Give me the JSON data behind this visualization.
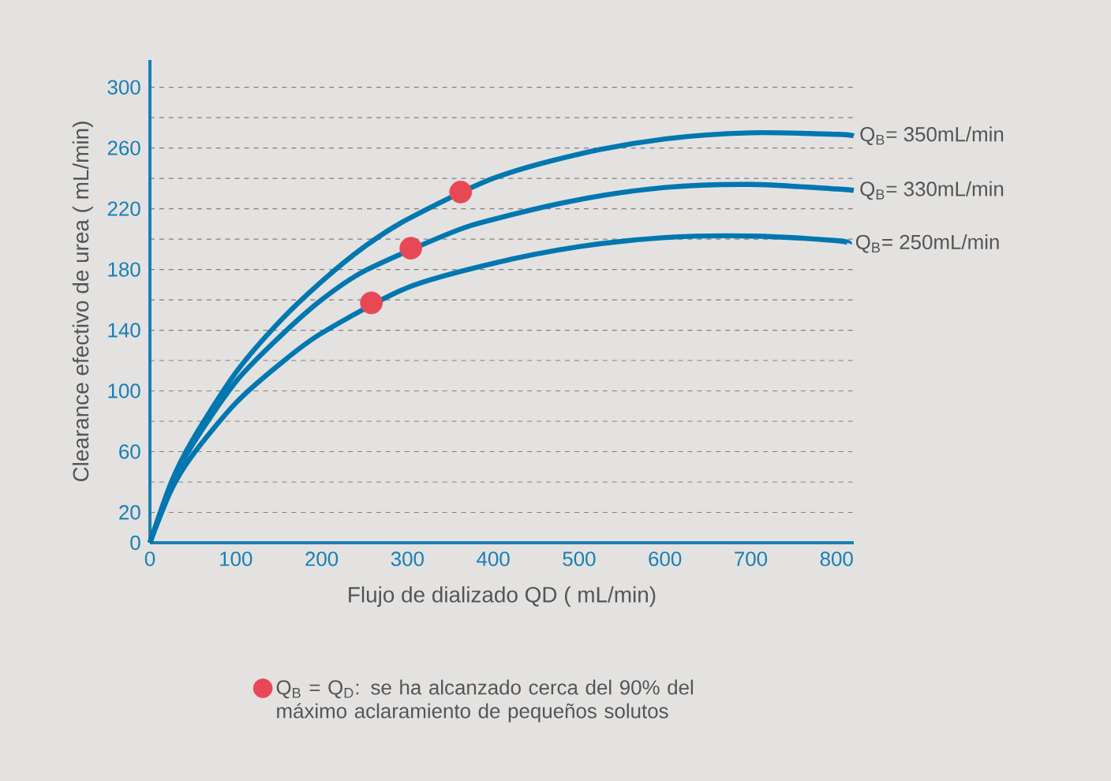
{
  "chart_data": {
    "type": "line",
    "xlabel": "Flujo de dializado QD ( mL/min)",
    "ylabel": "Clearance efectivo de urea ( mL/min)",
    "xlim": [
      0,
      820
    ],
    "ylim": [
      0,
      318
    ],
    "xticks": [
      0,
      100,
      200,
      300,
      400,
      500,
      600,
      700,
      800
    ],
    "yticks": [
      0,
      20,
      {
        "value": 40,
        "label": null
      },
      60,
      {
        "value": 80,
        "label": null
      },
      100,
      {
        "value": 120,
        "label": null
      },
      140,
      {
        "value": 160,
        "label": null
      },
      180,
      {
        "value": 200,
        "label": null
      },
      220,
      {
        "value": 240,
        "label": null
      },
      260,
      {
        "value": 280,
        "label": null
      },
      300
    ],
    "grid": "y",
    "legend": "bottom",
    "line_style": "solid",
    "series": [
      {
        "name": "Q$_{B}$= 350mL/min",
        "color": "#0077b0",
        "marker": "none",
        "x": [
          0,
          25,
          50,
          100,
          150,
          200,
          250,
          300,
          400,
          500,
          600,
          700,
          800,
          820
        ],
        "values": [
          0,
          40,
          68,
          112,
          145,
          172,
          195,
          213,
          240,
          256,
          266,
          270,
          269,
          268
        ]
      },
      {
        "name": "Q$_{B}$= 330mL/min",
        "color": "#0077b0",
        "marker": "none",
        "x": [
          0,
          25,
          50,
          100,
          150,
          200,
          250,
          350,
          400,
          500,
          600,
          700,
          800,
          820
        ],
        "values": [
          0,
          38,
          65,
          106,
          135,
          160,
          179,
          204,
          213,
          226,
          234,
          236,
          233,
          232
        ]
      },
      {
        "name": "Q$_{B}$= 250mL/min",
        "color": "#0077b0",
        "marker": "none",
        "x": [
          0,
          25,
          50,
          100,
          150,
          200,
          300,
          400,
          500,
          600,
          700,
          800,
          815
        ],
        "values": [
          0,
          35,
          58,
          92,
          117,
          138,
          168,
          184,
          195,
          201,
          202,
          199,
          197
        ]
      },
      {
        "type": "scatter",
        "name": "Q$_{B}$ = Q$_{D}$: se ha alcanzado cerca del 90% del máximo aclaramiento de pequeños solutos",
        "color": "#e84855",
        "marker": "circle",
        "x": [
          362,
          304,
          258
        ],
        "values": [
          231,
          194,
          158
        ]
      }
    ]
  }
}
